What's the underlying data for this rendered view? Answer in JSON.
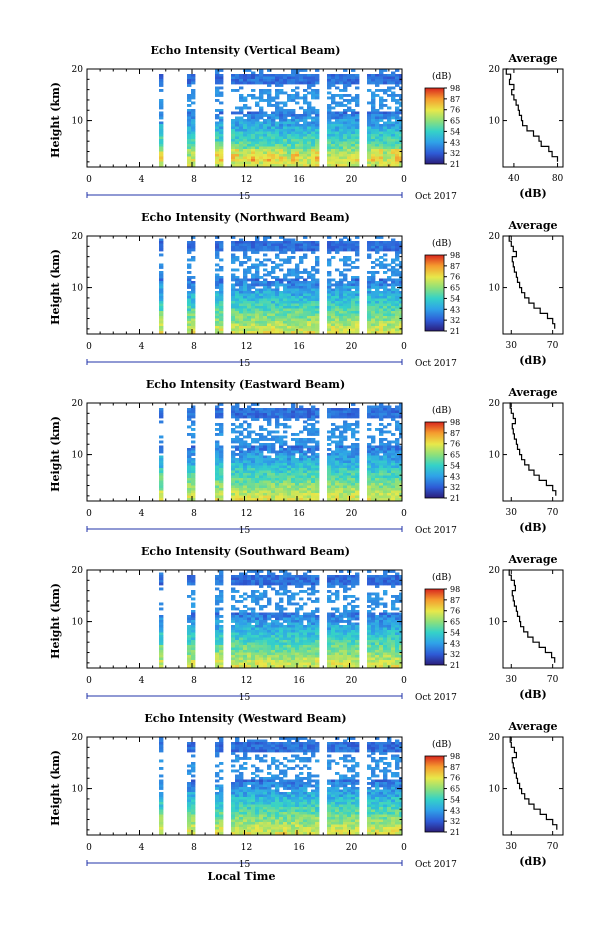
{
  "chart_data": [
    {
      "type": "heatmap",
      "title": "Echo Intensity (Vertical Beam)",
      "ylabel": "Height (km)",
      "x_ticks": [
        "0",
        "4",
        "8",
        "12",
        "16",
        "20",
        "0"
      ],
      "y_ticks": [
        "20",
        "10"
      ],
      "xlim": [
        0,
        24
      ],
      "ylim": [
        1,
        20
      ],
      "date_bar_label": "15",
      "date_suffix": "Oct 2017",
      "colorbar": {
        "title": "(dB)",
        "ticks": [
          "98",
          "87",
          "76",
          "65",
          "54",
          "43",
          "32",
          "21"
        ]
      },
      "data_gaps_hours": [
        [
          0,
          5.3
        ],
        [
          5.6,
          7.6
        ],
        [
          7.95,
          9.5
        ],
        [
          10.3,
          10.9
        ],
        [
          17.6,
          18.1
        ],
        [
          20.7,
          21.2
        ]
      ],
      "profile": {
        "title": "Average",
        "xlabel": "(dB)",
        "x_ticks": [
          "40",
          "80"
        ],
        "xlim": [
          30,
          85
        ],
        "y_ticks": [
          "20",
          "10"
        ],
        "heights_km": [
          2,
          3,
          4,
          5,
          6,
          7,
          8,
          9,
          10,
          11,
          12,
          13,
          14,
          15,
          16,
          17,
          18,
          19,
          20
        ],
        "values_db": [
          80,
          75,
          72,
          65,
          63,
          58,
          52,
          48,
          47,
          45,
          44,
          42,
          40,
          38,
          40,
          36,
          37,
          33,
          35
        ]
      }
    },
    {
      "type": "heatmap",
      "title": "Echo Intensity (Northward Beam)",
      "ylabel": "Height (km)",
      "x_ticks": [
        "0",
        "4",
        "8",
        "12",
        "16",
        "20",
        "0"
      ],
      "y_ticks": [
        "20",
        "10"
      ],
      "xlim": [
        0,
        24
      ],
      "ylim": [
        1,
        20
      ],
      "date_bar_label": "15",
      "date_suffix": "Oct 2017",
      "colorbar": {
        "title": "(dB)",
        "ticks": [
          "98",
          "87",
          "76",
          "65",
          "54",
          "43",
          "32",
          "21"
        ]
      },
      "data_gaps_hours": [
        [
          0,
          5.3
        ],
        [
          5.6,
          7.6
        ],
        [
          7.95,
          9.5
        ],
        [
          10.3,
          10.9
        ],
        [
          17.6,
          18.1
        ],
        [
          20.7,
          21.2
        ]
      ],
      "profile": {
        "title": "Average",
        "xlabel": "(dB)",
        "x_ticks": [
          "30",
          "70"
        ],
        "xlim": [
          22,
          80
        ],
        "y_ticks": [
          "20",
          "10"
        ],
        "heights_km": [
          2,
          3,
          4,
          5,
          6,
          7,
          8,
          9,
          10,
          11,
          12,
          13,
          14,
          15,
          16,
          17,
          18,
          19,
          20
        ],
        "values_db": [
          72,
          70,
          65,
          58,
          52,
          47,
          43,
          40,
          38,
          36,
          35,
          33,
          32,
          31,
          35,
          32,
          30,
          28,
          30
        ]
      }
    },
    {
      "type": "heatmap",
      "title": "Echo Intensity (Eastward Beam)",
      "ylabel": "Height (km)",
      "x_ticks": [
        "0",
        "4",
        "8",
        "12",
        "16",
        "20",
        "0"
      ],
      "y_ticks": [
        "20",
        "10"
      ],
      "xlim": [
        0,
        24
      ],
      "ylim": [
        1,
        20
      ],
      "date_bar_label": "15",
      "date_suffix": "Oct 2017",
      "colorbar": {
        "title": "(dB)",
        "ticks": [
          "98",
          "87",
          "76",
          "65",
          "54",
          "43",
          "32",
          "21"
        ]
      },
      "data_gaps_hours": [
        [
          0,
          5.3
        ],
        [
          5.6,
          7.6
        ],
        [
          7.95,
          9.5
        ],
        [
          10.3,
          10.9
        ],
        [
          17.6,
          18.1
        ],
        [
          20.7,
          21.2
        ]
      ],
      "profile": {
        "title": "Average",
        "xlabel": "(dB)",
        "x_ticks": [
          "30",
          "70"
        ],
        "xlim": [
          22,
          80
        ],
        "y_ticks": [
          "20",
          "10"
        ],
        "heights_km": [
          2,
          3,
          4,
          5,
          6,
          7,
          8,
          9,
          10,
          11,
          12,
          13,
          14,
          15,
          16,
          17,
          18,
          19,
          20
        ],
        "values_db": [
          73,
          70,
          64,
          57,
          52,
          47,
          43,
          40,
          38,
          36,
          35,
          33,
          32,
          31,
          34,
          32,
          30,
          29,
          30
        ]
      }
    },
    {
      "type": "heatmap",
      "title": "Echo Intensity (Southward Beam)",
      "ylabel": "Height (km)",
      "x_ticks": [
        "0",
        "4",
        "8",
        "12",
        "16",
        "20",
        "0"
      ],
      "y_ticks": [
        "20",
        "10"
      ],
      "xlim": [
        0,
        24
      ],
      "ylim": [
        1,
        20
      ],
      "date_bar_label": "15",
      "date_suffix": "Oct 2017",
      "colorbar": {
        "title": "(dB)",
        "ticks": [
          "98",
          "87",
          "76",
          "65",
          "54",
          "43",
          "32",
          "21"
        ]
      },
      "data_gaps_hours": [
        [
          0,
          5.3
        ],
        [
          5.6,
          7.6
        ],
        [
          7.95,
          9.5
        ],
        [
          10.3,
          10.9
        ],
        [
          17.6,
          18.1
        ],
        [
          20.7,
          21.2
        ]
      ],
      "profile": {
        "title": "Average",
        "xlabel": "(dB)",
        "x_ticks": [
          "30",
          "70"
        ],
        "xlim": [
          22,
          80
        ],
        "y_ticks": [
          "20",
          "10"
        ],
        "heights_km": [
          2,
          3,
          4,
          5,
          6,
          7,
          8,
          9,
          10,
          11,
          12,
          13,
          14,
          15,
          16,
          17,
          18,
          19,
          20
        ],
        "values_db": [
          72,
          69,
          63,
          57,
          51,
          46,
          42,
          39,
          38,
          36,
          35,
          33,
          32,
          31,
          34,
          33,
          30,
          28,
          29
        ]
      }
    },
    {
      "type": "heatmap",
      "title": "Echo Intensity (Westward Beam)",
      "ylabel": "Height (km)",
      "xlabel": "Local Time",
      "x_ticks": [
        "0",
        "4",
        "8",
        "12",
        "16",
        "20",
        "0"
      ],
      "y_ticks": [
        "20",
        "10"
      ],
      "xlim": [
        0,
        24
      ],
      "ylim": [
        1,
        20
      ],
      "date_bar_label": "15",
      "date_suffix": "Oct 2017",
      "colorbar": {
        "title": "(dB)",
        "ticks": [
          "98",
          "87",
          "76",
          "65",
          "54",
          "43",
          "32",
          "21"
        ]
      },
      "data_gaps_hours": [
        [
          0,
          5.3
        ],
        [
          5.6,
          7.6
        ],
        [
          7.95,
          9.5
        ],
        [
          10.3,
          10.9
        ],
        [
          17.6,
          18.1
        ],
        [
          20.7,
          21.2
        ]
      ],
      "profile": {
        "title": "Average",
        "xlabel": "(dB)",
        "x_ticks": [
          "30",
          "70"
        ],
        "xlim": [
          22,
          80
        ],
        "y_ticks": [
          "20",
          "10"
        ],
        "heights_km": [
          2,
          3,
          4,
          5,
          6,
          7,
          8,
          9,
          10,
          11,
          12,
          13,
          14,
          15,
          16,
          17,
          18,
          19,
          20
        ],
        "values_db": [
          74,
          70,
          64,
          58,
          52,
          47,
          43,
          40,
          38,
          36,
          35,
          33,
          32,
          31,
          35,
          33,
          30,
          29,
          30
        ]
      }
    }
  ]
}
